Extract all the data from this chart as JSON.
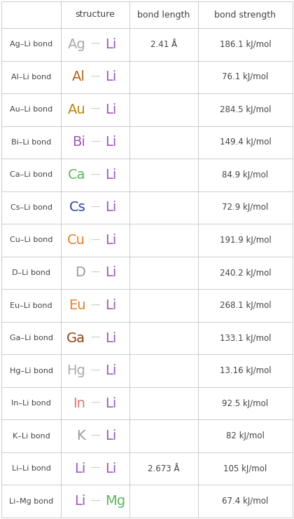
{
  "headers": [
    "",
    "structure",
    "bond length",
    "bond strength"
  ],
  "rows": [
    {
      "label": "Ag–Li bond",
      "elem1": "Ag",
      "elem2": "Li",
      "color1": "#aaaaaa",
      "color2": "#9b59b6",
      "bond_length": "2.41 Å",
      "bond_strength": "186.1 kJ/mol"
    },
    {
      "label": "Al–Li bond",
      "elem1": "Al",
      "elem2": "Li",
      "color1": "#b5651d",
      "color2": "#9b59b6",
      "bond_length": "",
      "bond_strength": "76.1 kJ/mol"
    },
    {
      "label": "Au–Li bond",
      "elem1": "Au",
      "elem2": "Li",
      "color1": "#b8860b",
      "color2": "#9b59b6",
      "bond_length": "",
      "bond_strength": "284.5 kJ/mol"
    },
    {
      "label": "Bi–Li bond",
      "elem1": "Bi",
      "elem2": "Li",
      "color1": "#9b59b6",
      "color2": "#9b59b6",
      "bond_length": "",
      "bond_strength": "149.4 kJ/mol"
    },
    {
      "label": "Ca–Li bond",
      "elem1": "Ca",
      "elem2": "Li",
      "color1": "#5cb85c",
      "color2": "#9b59b6",
      "bond_length": "",
      "bond_strength": "84.9 kJ/mol"
    },
    {
      "label": "Cs–Li bond",
      "elem1": "Cs",
      "elem2": "Li",
      "color1": "#2e3fa3",
      "color2": "#9b59b6",
      "bond_length": "",
      "bond_strength": "72.9 kJ/mol"
    },
    {
      "label": "Cu–Li bond",
      "elem1": "Cu",
      "elem2": "Li",
      "color1": "#e67e22",
      "color2": "#9b59b6",
      "bond_length": "",
      "bond_strength": "191.9 kJ/mol"
    },
    {
      "label": "D–Li bond",
      "elem1": "D",
      "elem2": "Li",
      "color1": "#999999",
      "color2": "#9b59b6",
      "bond_length": "",
      "bond_strength": "240.2 kJ/mol"
    },
    {
      "label": "Eu–Li bond",
      "elem1": "Eu",
      "elem2": "Li",
      "color1": "#e67e22",
      "color2": "#9b59b6",
      "bond_length": "",
      "bond_strength": "268.1 kJ/mol"
    },
    {
      "label": "Ga–Li bond",
      "elem1": "Ga",
      "elem2": "Li",
      "color1": "#8b4513",
      "color2": "#9b59b6",
      "bond_length": "",
      "bond_strength": "133.1 kJ/mol"
    },
    {
      "label": "Hg–Li bond",
      "elem1": "Hg",
      "elem2": "Li",
      "color1": "#aaaaaa",
      "color2": "#9b59b6",
      "bond_length": "",
      "bond_strength": "13.16 kJ/mol"
    },
    {
      "label": "In–Li bond",
      "elem1": "In",
      "elem2": "Li",
      "color1": "#e57373",
      "color2": "#9b59b6",
      "bond_length": "",
      "bond_strength": "92.5 kJ/mol"
    },
    {
      "label": "K–Li bond",
      "elem1": "K",
      "elem2": "Li",
      "color1": "#999999",
      "color2": "#9b59b6",
      "bond_length": "",
      "bond_strength": "82 kJ/mol"
    },
    {
      "label": "Li–Li bond",
      "elem1": "Li",
      "elem2": "Li",
      "color1": "#9b59b6",
      "color2": "#9b59b6",
      "bond_length": "2.673 Å",
      "bond_strength": "105 kJ/mol"
    },
    {
      "label": "Li–Mg bond",
      "elem1": "Li",
      "elem2": "Mg",
      "color1": "#9b59b6",
      "color2": "#5cb85c",
      "bond_length": "",
      "bond_strength": "67.4 kJ/mol"
    }
  ],
  "header_fontsize": 9,
  "label_fontsize": 8,
  "struct_fontsize": 14,
  "value_fontsize": 8.5,
  "bg_color": "#ffffff",
  "grid_color": "#cccccc",
  "text_color": "#444444",
  "dash_color": "#cccccc"
}
